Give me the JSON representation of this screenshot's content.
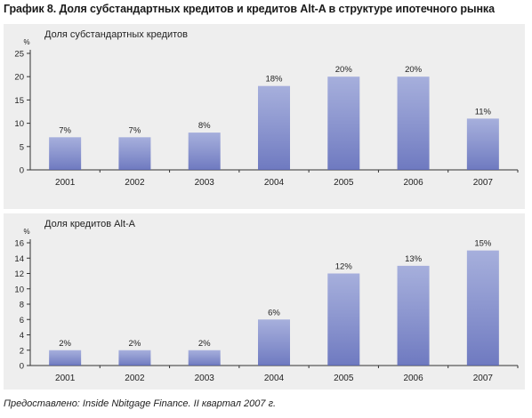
{
  "figure_title": "График 8. Доля субстандартных кредитов и кредитов Alt-A в структуре ипотечного рынка",
  "source_note": "Предоставлено: Inside Nbitgage Finance. II квартал 2007 г.",
  "colors": {
    "bar": "#8e9ad6",
    "bar_dark": "#5865b8",
    "panel_bg": "#eeeeee",
    "axis": "#333333"
  },
  "chart_data": [
    {
      "type": "bar",
      "title": "Доля субстандартных кредитов",
      "ylabel": "%",
      "categories": [
        "2001",
        "2002",
        "2003",
        "2004",
        "2005",
        "2006",
        "2007"
      ],
      "values": [
        7,
        7,
        8,
        18,
        20,
        20,
        11
      ],
      "data_labels": [
        "7%",
        "7%",
        "8%",
        "18%",
        "20%",
        "20%",
        "11%"
      ],
      "ylim": [
        0,
        25
      ],
      "yticks": [
        0,
        5,
        10,
        15,
        20,
        25
      ],
      "grid": false
    },
    {
      "type": "bar",
      "title": "Доля кредитов Alt-A",
      "ylabel": "%",
      "categories": [
        "2001",
        "2002",
        "2003",
        "2004",
        "2005",
        "2006",
        "2007"
      ],
      "values": [
        2,
        2,
        2,
        6,
        12,
        13,
        15
      ],
      "data_labels": [
        "2%",
        "2%",
        "2%",
        "6%",
        "12%",
        "13%",
        "15%"
      ],
      "ylim": [
        0,
        16
      ],
      "yticks": [
        0,
        2,
        4,
        6,
        8,
        10,
        12,
        14,
        16
      ],
      "grid": false
    }
  ]
}
